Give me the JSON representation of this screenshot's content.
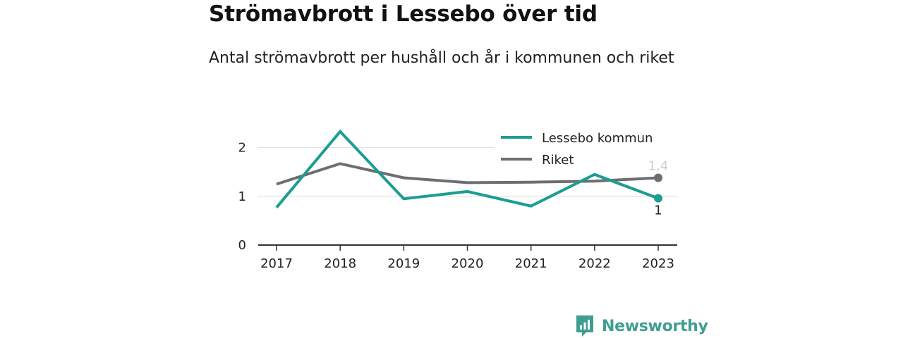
{
  "header": {
    "title": "Strömavbrott i Lessebo över tid",
    "subtitle": "Antal strömavbrott per hushåll och år i kommunen och riket"
  },
  "brand": {
    "name": "Newsworthy",
    "icon": "newsworthy-logo-icon",
    "color": "#3f9e8f"
  },
  "chart_data": {
    "type": "line",
    "title": "",
    "xlabel": "",
    "ylabel": "",
    "x": [
      "2017",
      "2018",
      "2019",
      "2020",
      "2021",
      "2022",
      "2023"
    ],
    "ylim": [
      0,
      2.5
    ],
    "yticks": [
      0,
      1,
      2
    ],
    "ytick_labels": [
      "0",
      "1",
      "2"
    ],
    "grid": true,
    "legend_position": "top-right",
    "series": [
      {
        "name": "Lessebo kommun",
        "color": "#1a9e92",
        "values": [
          0.77,
          2.33,
          0.95,
          1.1,
          0.8,
          1.45,
          0.96
        ],
        "end_label": "1",
        "end_label_color": "#222222"
      },
      {
        "name": "Riket",
        "color": "#6e6d72",
        "values": [
          1.25,
          1.67,
          1.38,
          1.28,
          1.29,
          1.31,
          1.38
        ],
        "end_label": "1,4",
        "end_label_color": "#cccccc"
      }
    ]
  }
}
